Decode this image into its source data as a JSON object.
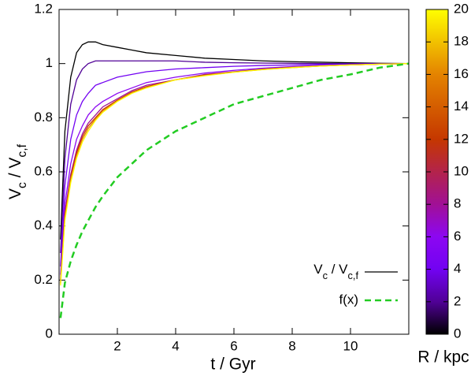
{
  "chart_data": {
    "type": "line",
    "xlabel": "t / Gyr",
    "ylabel": [
      "V",
      "c",
      " / V",
      "c,f"
    ],
    "xlim": [
      0,
      12
    ],
    "ylim": [
      0,
      1.2
    ],
    "xticks": [
      2,
      4,
      6,
      8,
      10
    ],
    "yticks": [
      0,
      0.2,
      0.4,
      0.6,
      0.8,
      1,
      1.2
    ],
    "x": [
      0.05,
      0.2,
      0.4,
      0.6,
      0.8,
      1,
      1.25,
      1.5,
      2,
      2.5,
      3,
      4,
      5,
      6,
      7,
      8,
      9,
      10,
      11,
      12
    ],
    "series": [
      {
        "r": 0,
        "color": "#000000",
        "values": [
          0.35,
          0.75,
          0.95,
          1.04,
          1.07,
          1.08,
          1.08,
          1.07,
          1.06,
          1.05,
          1.04,
          1.03,
          1.02,
          1.015,
          1.01,
          1.007,
          1.005,
          1.003,
          1.001,
          1
        ]
      },
      {
        "r": 2,
        "color": "#500196",
        "values": [
          0.3,
          0.65,
          0.85,
          0.94,
          0.98,
          1.0,
          1.01,
          1.01,
          1.01,
          1.01,
          1.01,
          1.01,
          1.005,
          1.003,
          1.002,
          1.001,
          1.0,
          1.0,
          1.0,
          1
        ]
      },
      {
        "r": 4,
        "color": "#7202f2",
        "values": [
          0.25,
          0.55,
          0.72,
          0.81,
          0.86,
          0.89,
          0.92,
          0.93,
          0.95,
          0.96,
          0.97,
          0.98,
          0.985,
          0.99,
          0.993,
          0.995,
          0.997,
          0.998,
          0.999,
          1
        ]
      },
      {
        "r": 6,
        "color": "#8c07f2",
        "values": [
          0.22,
          0.48,
          0.63,
          0.72,
          0.77,
          0.81,
          0.84,
          0.86,
          0.89,
          0.91,
          0.93,
          0.95,
          0.965,
          0.975,
          0.983,
          0.989,
          0.993,
          0.996,
          0.998,
          1
        ]
      },
      {
        "r": 8,
        "color": "#a11096",
        "values": [
          0.2,
          0.45,
          0.59,
          0.68,
          0.74,
          0.78,
          0.81,
          0.84,
          0.87,
          0.9,
          0.92,
          0.94,
          0.96,
          0.97,
          0.98,
          0.987,
          0.992,
          0.995,
          0.998,
          1
        ]
      },
      {
        "r": 12,
        "color": "#c53700",
        "values": [
          0.19,
          0.44,
          0.58,
          0.67,
          0.73,
          0.77,
          0.8,
          0.83,
          0.865,
          0.895,
          0.915,
          0.94,
          0.958,
          0.969,
          0.979,
          0.986,
          0.991,
          0.995,
          0.998,
          1
        ]
      },
      {
        "r": 16,
        "color": "#e48300",
        "values": [
          0.185,
          0.43,
          0.57,
          0.66,
          0.72,
          0.76,
          0.795,
          0.825,
          0.862,
          0.892,
          0.912,
          0.94,
          0.956,
          0.968,
          0.978,
          0.985,
          0.991,
          0.995,
          0.998,
          1
        ]
      },
      {
        "r": 20,
        "color": "#ffff00",
        "values": [
          0.18,
          0.42,
          0.56,
          0.65,
          0.71,
          0.75,
          0.79,
          0.82,
          0.86,
          0.89,
          0.91,
          0.94,
          0.955,
          0.968,
          0.978,
          0.985,
          0.991,
          0.995,
          0.998,
          1
        ]
      }
    ],
    "curves_label": [
      "V",
      "c",
      " / V",
      "c,f"
    ],
    "reference": {
      "name": "f(x)",
      "color": "#22cc22",
      "dashed": true,
      "values": [
        0.06,
        0.19,
        0.27,
        0.33,
        0.38,
        0.42,
        0.47,
        0.51,
        0.58,
        0.63,
        0.68,
        0.75,
        0.8,
        0.85,
        0.88,
        0.91,
        0.94,
        0.96,
        0.985,
        1
      ]
    },
    "colorbar": {
      "label": "R / kpc",
      "clim": [
        0,
        20
      ],
      "cticks": [
        0,
        2,
        4,
        6,
        8,
        10,
        12,
        14,
        16,
        18,
        20
      ]
    }
  }
}
